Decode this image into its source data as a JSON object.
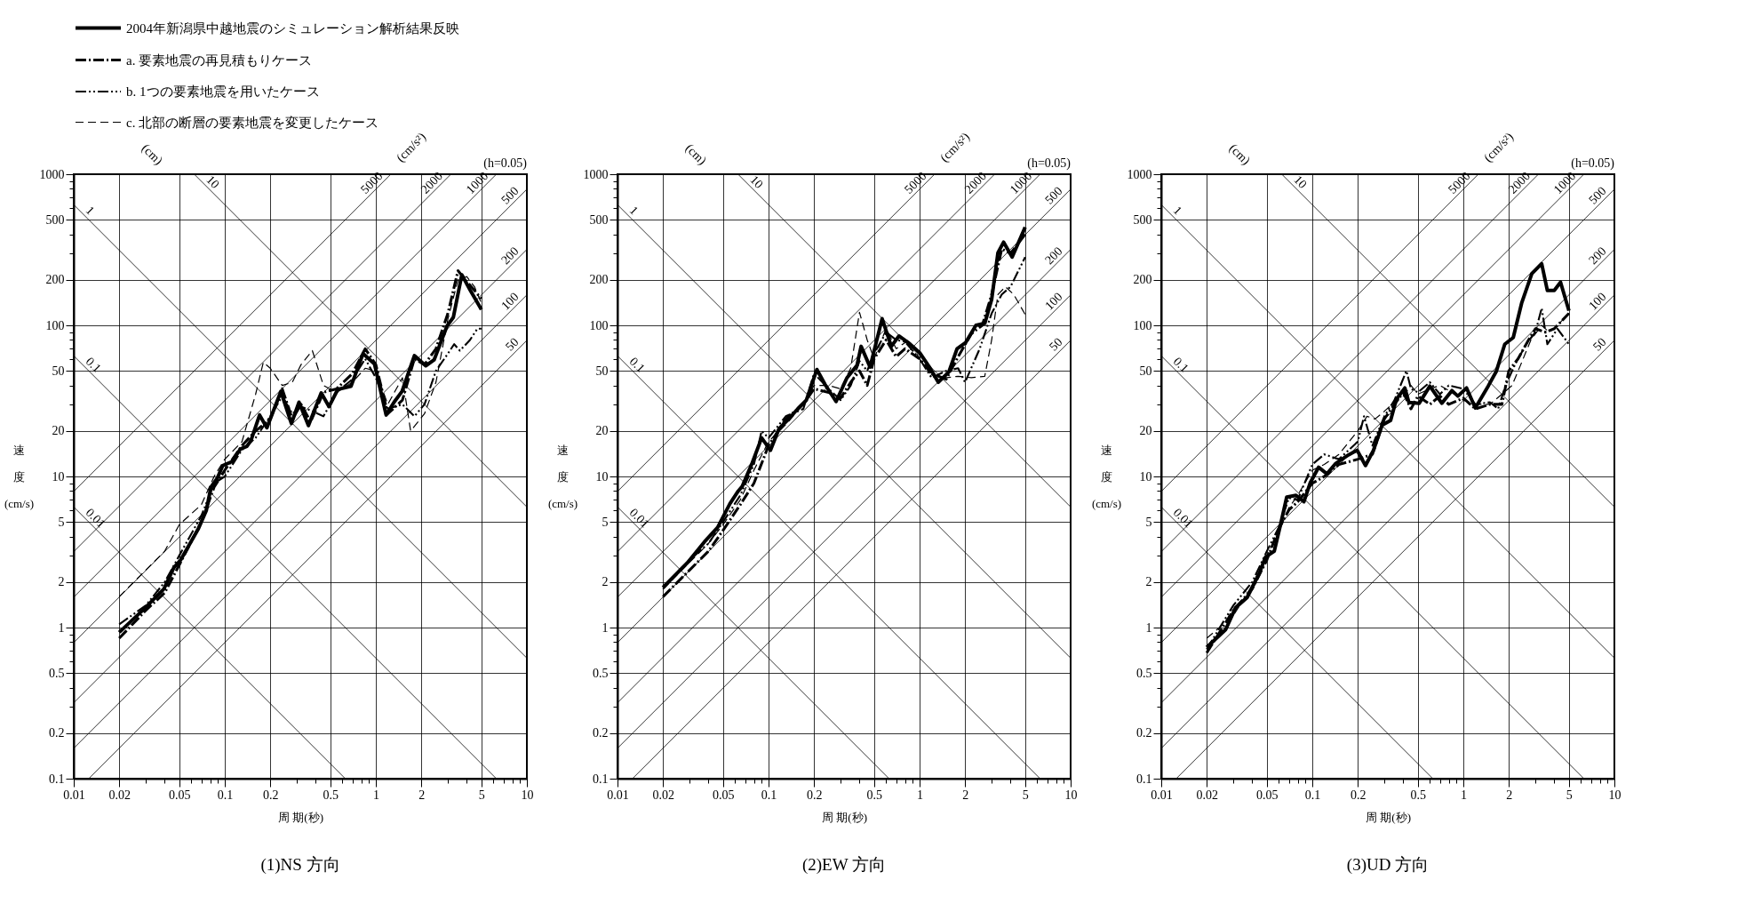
{
  "chart_data": [
    {
      "type": "line",
      "title": "(1)NS 方向",
      "xlabel": "周 期(秒)",
      "ylabel": "速度(cm/s)",
      "log": "xy",
      "grid": true,
      "legend": "top left",
      "xlim": [
        0.01,
        10
      ],
      "ylim": [
        0.1,
        1000
      ],
      "xticks": [
        0.01,
        0.02,
        {
          "value": 0.03,
          "label": null
        },
        {
          "value": 0.04,
          "label": null
        },
        0.05,
        {
          "value": 0.06,
          "label": null
        },
        {
          "value": 0.07,
          "label": null
        },
        {
          "value": 0.08,
          "label": null
        },
        {
          "value": 0.09,
          "label": null
        },
        0.1,
        0.2,
        {
          "value": 0.3,
          "label": null
        },
        {
          "value": 0.4,
          "label": null
        },
        0.5,
        {
          "value": 0.6,
          "label": null
        },
        {
          "value": 0.7,
          "label": null
        },
        {
          "value": 0.8,
          "label": null
        },
        {
          "value": 0.9,
          "label": null
        },
        1,
        2,
        {
          "value": 3,
          "label": null
        },
        {
          "value": 4,
          "label": null
        },
        5,
        {
          "value": 6,
          "label": null
        },
        {
          "value": 7,
          "label": null
        },
        {
          "value": 8,
          "label": null
        },
        {
          "value": 9,
          "label": null
        },
        10
      ],
      "yticks": [
        0.1,
        0.2,
        {
          "value": 0.3,
          "label": null
        },
        {
          "value": 0.4,
          "label": null
        },
        0.5,
        {
          "value": 0.6,
          "label": null
        },
        {
          "value": 0.7,
          "label": null
        },
        {
          "value": 0.8,
          "label": null
        },
        {
          "value": 0.9,
          "label": null
        },
        1,
        2,
        {
          "value": 3,
          "label": null
        },
        {
          "value": 4,
          "label": null
        },
        5,
        {
          "value": 6,
          "label": null
        },
        {
          "value": 7,
          "label": null
        },
        {
          "value": 8,
          "label": null
        },
        {
          "value": 9,
          "label": null
        },
        10,
        20,
        {
          "value": 30,
          "label": null
        },
        {
          "value": 40,
          "label": null
        },
        50,
        {
          "value": 60,
          "label": null
        },
        {
          "value": 70,
          "label": null
        },
        {
          "value": 80,
          "label": null
        },
        {
          "value": 90,
          "label": null
        },
        100,
        200,
        {
          "value": 300,
          "label": null
        },
        {
          "value": 400,
          "label": null
        },
        500,
        {
          "value": 600,
          "label": null
        },
        {
          "value": 700,
          "label": null
        },
        {
          "value": 800,
          "label": null
        },
        {
          "value": 900,
          "label": null
        },
        1000
      ],
      "annotations": [
        "(cm)",
        "(cm/s²)",
        "(h=0.05)"
      ],
      "series": [
        {
          "name": "2004年新潟県中越地震のシミュレーション解析結果反映",
          "color": "#000000",
          "line_style": "solid",
          "x": [
            0.02,
            0.0286,
            0.0395,
            0.046,
            0.051,
            0.0665,
            0.0755,
            0.081,
            0.089,
            0.097,
            0.111,
            0.127,
            0.14,
            0.149,
            0.17,
            0.19,
            0.235,
            0.276,
            0.31,
            0.358,
            0.435,
            0.49,
            0.56,
            0.685,
            0.823,
            0.98,
            1.17,
            1.32,
            1.49,
            1.8,
            2.14,
            2.43,
            2.96,
            3.26,
            3.71,
            4.2,
            5.0
          ],
          "values": [
            0.93,
            1.3,
            1.8,
            2.49,
            2.8,
            4.46,
            5.96,
            8.5,
            9.7,
            11.8,
            12.5,
            15.2,
            15.8,
            17.3,
            25.5,
            21,
            36.5,
            22.4,
            31,
            21.7,
            35.7,
            29,
            37.7,
            39.5,
            65,
            55.5,
            25.5,
            31,
            36.5,
            63,
            54,
            59,
            99,
            113,
            216,
            172,
            127
          ]
        },
        {
          "name": "a. 要素地震の再見積もりケース",
          "color": "#000000",
          "line_style": "dashdot",
          "x": [
            0.02,
            0.03,
            0.04,
            0.05,
            0.07,
            0.085,
            0.1,
            0.13,
            0.16,
            0.18,
            0.2,
            0.24,
            0.28,
            0.32,
            0.37,
            0.45,
            0.55,
            0.7,
            0.85,
            1.0,
            1.2,
            1.5,
            1.8,
            2.1,
            2.5,
            3.0,
            3.5,
            4.0,
            4.5,
            5.0
          ],
          "values": [
            0.85,
            1.3,
            1.7,
            2.6,
            5.0,
            8.5,
            11,
            16,
            20,
            22,
            24,
            38,
            24,
            30,
            23,
            36,
            38,
            48,
            70,
            55,
            26,
            32,
            60,
            55,
            70,
            120,
            230,
            195,
            170,
            150
          ]
        },
        {
          "name": "b. 1つの要素地震を用いたケース",
          "color": "#000000",
          "line_style": "dashdotdot",
          "x": [
            0.02,
            0.03,
            0.04,
            0.05,
            0.07,
            0.085,
            0.1,
            0.13,
            0.16,
            0.2,
            0.24,
            0.28,
            0.32,
            0.38,
            0.45,
            0.55,
            0.7,
            0.85,
            1.0,
            1.2,
            1.5,
            1.8,
            2.1,
            2.5,
            3.0,
            3.3,
            3.6,
            4.2,
            4.7,
            5.0
          ],
          "values": [
            1.05,
            1.4,
            2.0,
            3.0,
            5.5,
            9,
            10,
            15,
            18,
            25,
            34,
            26,
            29,
            27,
            25,
            36,
            44,
            60,
            45,
            28,
            30,
            25,
            30,
            50,
            65,
            75,
            68,
            80,
            95,
            95
          ]
        },
        {
          "name": "c. 北部の断層の要素地震を変更したケース",
          "color": "#000000",
          "line_style": "dashed",
          "x": [
            0.02,
            0.03,
            0.04,
            0.05,
            0.07,
            0.085,
            0.1,
            0.13,
            0.16,
            0.18,
            0.2,
            0.24,
            0.28,
            0.32,
            0.38,
            0.45,
            0.55,
            0.7,
            0.85,
            1.0,
            1.2,
            1.5,
            1.7,
            2.1,
            2.5,
            3.0,
            3.5,
            4.0,
            4.5,
            5.0
          ],
          "values": [
            1.6,
            2.4,
            3.2,
            4.8,
            6.5,
            10,
            13,
            17,
            35,
            57,
            52,
            40,
            42,
            55,
            68,
            40,
            36,
            42,
            52,
            50,
            30,
            45,
            20,
            26,
            42,
            110,
            200,
            210,
            180,
            140
          ]
        },
        {
          "name": "1",
          "color": "#000000",
          "x": [
            0.01,
            10
          ],
          "values": [
            628,
            0.628
          ]
        },
        {
          "name": "10",
          "color": "#000000",
          "x": [
            0.0628,
            10
          ],
          "values": [
            1000,
            6.28
          ]
        },
        {
          "name": "0.1",
          "color": "#000000",
          "x": [
            0.01,
            6.28
          ],
          "values": [
            62.8,
            0.1
          ]
        },
        {
          "name": "0.01",
          "color": "#000000",
          "x": [
            0.01,
            0.628
          ],
          "values": [
            6.28,
            0.1
          ]
        },
        {
          "name": "5000",
          "color": "#000000",
          "x": [
            0.01,
            1.256
          ],
          "values": [
            7.96,
            1000
          ]
        },
        {
          "name": "2000",
          "color": "#000000",
          "x": [
            0.01,
            3.14
          ],
          "values": [
            3.18,
            1000
          ]
        },
        {
          "name": "1000",
          "color": "#000000",
          "x": [
            0.01,
            6.28
          ],
          "values": [
            1.59,
            1000
          ]
        },
        {
          "name": "500",
          "color": "#000000",
          "x": [
            0.01,
            10
          ],
          "values": [
            0.796,
            796
          ]
        },
        {
          "name": "200",
          "color": "#000000",
          "x": [
            0.01,
            10
          ],
          "values": [
            0.318,
            318
          ]
        },
        {
          "name": "100",
          "color": "#000000",
          "x": [
            0.01,
            10
          ],
          "values": [
            0.159,
            159
          ]
        },
        {
          "name": "50",
          "color": "#000000",
          "x": [
            0.01256,
            10
          ],
          "values": [
            0.1,
            79.6
          ]
        }
      ]
    },
    {
      "type": "line",
      "title": "(2)EW 方向",
      "xlabel": "周 期(秒)",
      "ylabel": "速度(cm/s)",
      "log": "xy",
      "grid": true,
      "xlim": [
        0.01,
        10
      ],
      "ylim": [
        0.1,
        1000
      ],
      "xticks": [
        0.01,
        0.02,
        {
          "value": 0.03,
          "label": null
        },
        {
          "value": 0.04,
          "label": null
        },
        0.05,
        {
          "value": 0.06,
          "label": null
        },
        {
          "value": 0.07,
          "label": null
        },
        {
          "value": 0.08,
          "label": null
        },
        {
          "value": 0.09,
          "label": null
        },
        0.1,
        0.2,
        {
          "value": 0.3,
          "label": null
        },
        {
          "value": 0.4,
          "label": null
        },
        0.5,
        {
          "value": 0.6,
          "label": null
        },
        {
          "value": 0.7,
          "label": null
        },
        {
          "value": 0.8,
          "label": null
        },
        {
          "value": 0.9,
          "label": null
        },
        1,
        2,
        {
          "value": 3,
          "label": null
        },
        {
          "value": 4,
          "label": null
        },
        5,
        {
          "value": 6,
          "label": null
        },
        {
          "value": 7,
          "label": null
        },
        {
          "value": 8,
          "label": null
        },
        {
          "value": 9,
          "label": null
        },
        10
      ],
      "yticks": [
        0.1,
        0.2,
        {
          "value": 0.3,
          "label": null
        },
        {
          "value": 0.4,
          "label": null
        },
        0.5,
        {
          "value": 0.6,
          "label": null
        },
        {
          "value": 0.7,
          "label": null
        },
        {
          "value": 0.8,
          "label": null
        },
        {
          "value": 0.9,
          "label": null
        },
        1,
        2,
        {
          "value": 3,
          "label": null
        },
        {
          "value": 4,
          "label": null
        },
        5,
        {
          "value": 6,
          "label": null
        },
        {
          "value": 7,
          "label": null
        },
        {
          "value": 8,
          "label": null
        },
        {
          "value": 9,
          "label": null
        },
        10,
        20,
        {
          "value": 30,
          "label": null
        },
        {
          "value": 40,
          "label": null
        },
        50,
        {
          "value": 60,
          "label": null
        },
        {
          "value": 70,
          "label": null
        },
        {
          "value": 80,
          "label": null
        },
        {
          "value": 90,
          "label": null
        },
        100,
        200,
        {
          "value": 300,
          "label": null
        },
        {
          "value": 400,
          "label": null
        },
        500,
        {
          "value": 600,
          "label": null
        },
        {
          "value": 700,
          "label": null
        },
        {
          "value": 800,
          "label": null
        },
        {
          "value": 900,
          "label": null
        },
        1000
      ],
      "annotations": [
        "(cm)",
        "(cm/s²)",
        "(h=0.05)"
      ],
      "series": [
        {
          "color": "#000000",
          "line_style": "solid",
          "x": [
            0.02,
            0.029,
            0.0377,
            0.046,
            0.0555,
            0.063,
            0.067,
            0.077,
            0.09,
            0.103,
            0.117,
            0.137,
            0.156,
            0.178,
            0.209,
            0.237,
            0.28,
            0.33,
            0.385,
            0.41,
            0.47,
            0.565,
            0.65,
            0.73,
            0.84,
            1.0,
            1.16,
            1.33,
            1.56,
            1.77,
            2.02,
            2.36,
            2.7,
            3.0,
            3.3,
            3.6,
            4.1,
            5.0
          ],
          "values": [
            1.84,
            2.68,
            3.7,
            4.6,
            6.6,
            8.0,
            8.6,
            11.9,
            18,
            14.9,
            20.6,
            24.2,
            28,
            32,
            51,
            40.5,
            31.3,
            44.8,
            54.3,
            72.6,
            53,
            110.6,
            72.6,
            85,
            77,
            66,
            53,
            42,
            49,
            70,
            77,
            100,
            103,
            148,
            302,
            355,
            283,
            446
          ]
        },
        {
          "color": "#000000",
          "line_style": "dashdot",
          "x": [
            0.02,
            0.03,
            0.04,
            0.05,
            0.065,
            0.08,
            0.1,
            0.13,
            0.17,
            0.2,
            0.25,
            0.3,
            0.35,
            0.4,
            0.45,
            0.5,
            0.6,
            0.7,
            0.8,
            1.0,
            1.2,
            1.5,
            1.8,
            2.2,
            2.6,
            3.0,
            3.5,
            4.0,
            5.0
          ],
          "values": [
            1.6,
            2.4,
            3.2,
            4.4,
            6.5,
            9.0,
            16,
            24,
            30,
            38,
            36,
            33,
            42,
            50,
            40,
            60,
            80,
            62,
            70,
            60,
            48,
            44,
            62,
            88,
            100,
            160,
            320,
            300,
            400
          ]
        },
        {
          "color": "#000000",
          "line_style": "dashdotdot",
          "x": [
            0.02,
            0.03,
            0.04,
            0.05,
            0.065,
            0.08,
            0.09,
            0.1,
            0.13,
            0.17,
            0.2,
            0.25,
            0.3,
            0.35,
            0.4,
            0.45,
            0.5,
            0.6,
            0.7,
            0.8,
            1.0,
            1.2,
            1.5,
            1.8,
            2.0,
            2.5,
            3.0,
            3.5,
            4.0,
            5.0
          ],
          "values": [
            1.8,
            2.8,
            3.6,
            5.0,
            7.5,
            12,
            20,
            18,
            25,
            28,
            48,
            38,
            32,
            40,
            58,
            50,
            65,
            90,
            80,
            78,
            60,
            45,
            50,
            52,
            42,
            70,
            120,
            160,
            180,
            283
          ]
        },
        {
          "color": "#000000",
          "line_style": "dashed",
          "x": [
            0.02,
            0.03,
            0.04,
            0.05,
            0.065,
            0.08,
            0.1,
            0.13,
            0.17,
            0.2,
            0.25,
            0.3,
            0.35,
            0.4,
            0.45,
            0.5,
            0.6,
            0.7,
            0.85,
            1.0,
            1.2,
            1.5,
            1.8,
            2.2,
            2.7,
            3.0,
            3.3,
            3.7,
            4.2,
            5.0
          ],
          "values": [
            1.8,
            2.7,
            3.6,
            4.8,
            7.0,
            11,
            17,
            22,
            30,
            40,
            40,
            38,
            52,
            122,
            80,
            60,
            95,
            70,
            80,
            60,
            47,
            45,
            46,
            45,
            46,
            80,
            160,
            180,
            160,
            118
          ]
        },
        {
          "name": "1",
          "color": "#000000",
          "x": [
            0.01,
            10
          ],
          "values": [
            628,
            0.628
          ]
        },
        {
          "name": "10",
          "color": "#000000",
          "x": [
            0.0628,
            10
          ],
          "values": [
            1000,
            6.28
          ]
        },
        {
          "name": "0.1",
          "color": "#000000",
          "x": [
            0.01,
            6.28
          ],
          "values": [
            62.8,
            0.1
          ]
        },
        {
          "name": "0.01",
          "color": "#000000",
          "x": [
            0.01,
            0.628
          ],
          "values": [
            6.28,
            0.1
          ]
        },
        {
          "name": "5000",
          "color": "#000000",
          "x": [
            0.01,
            1.256
          ],
          "values": [
            7.96,
            1000
          ]
        },
        {
          "name": "2000",
          "color": "#000000",
          "x": [
            0.01,
            3.14
          ],
          "values": [
            3.18,
            1000
          ]
        },
        {
          "name": "1000",
          "color": "#000000",
          "x": [
            0.01,
            6.28
          ],
          "values": [
            1.59,
            1000
          ]
        },
        {
          "name": "500",
          "color": "#000000",
          "x": [
            0.01,
            10
          ],
          "values": [
            0.796,
            796
          ]
        },
        {
          "name": "200",
          "color": "#000000",
          "x": [
            0.01,
            10
          ],
          "values": [
            0.318,
            318
          ]
        },
        {
          "name": "100",
          "color": "#000000",
          "x": [
            0.01,
            10
          ],
          "values": [
            0.159,
            159
          ]
        },
        {
          "name": "50",
          "color": "#000000",
          "x": [
            0.01256,
            10
          ],
          "values": [
            0.1,
            79.6
          ]
        }
      ]
    },
    {
      "type": "line",
      "title": "(3)UD 方向",
      "xlabel": "周 期(秒)",
      "ylabel": "速度(cm/s)",
      "log": "xy",
      "grid": true,
      "xlim": [
        0.01,
        10
      ],
      "ylim": [
        0.1,
        1000
      ],
      "xticks": [
        0.01,
        0.02,
        {
          "value": 0.03,
          "label": null
        },
        {
          "value": 0.04,
          "label": null
        },
        0.05,
        {
          "value": 0.06,
          "label": null
        },
        {
          "value": 0.07,
          "label": null
        },
        {
          "value": 0.08,
          "label": null
        },
        {
          "value": 0.09,
          "label": null
        },
        0.1,
        0.2,
        {
          "value": 0.3,
          "label": null
        },
        {
          "value": 0.4,
          "label": null
        },
        0.5,
        {
          "value": 0.6,
          "label": null
        },
        {
          "value": 0.7,
          "label": null
        },
        {
          "value": 0.8,
          "label": null
        },
        {
          "value": 0.9,
          "label": null
        },
        1,
        2,
        {
          "value": 3,
          "label": null
        },
        {
          "value": 4,
          "label": null
        },
        5,
        {
          "value": 6,
          "label": null
        },
        {
          "value": 7,
          "label": null
        },
        {
          "value": 8,
          "label": null
        },
        {
          "value": 9,
          "label": null
        },
        10
      ],
      "yticks": [
        0.1,
        0.2,
        {
          "value": 0.3,
          "label": null
        },
        {
          "value": 0.4,
          "label": null
        },
        0.5,
        {
          "value": 0.6,
          "label": null
        },
        {
          "value": 0.7,
          "label": null
        },
        {
          "value": 0.8,
          "label": null
        },
        {
          "value": 0.9,
          "label": null
        },
        1,
        2,
        {
          "value": 3,
          "label": null
        },
        {
          "value": 4,
          "label": null
        },
        5,
        {
          "value": 6,
          "label": null
        },
        {
          "value": 7,
          "label": null
        },
        {
          "value": 8,
          "label": null
        },
        {
          "value": 9,
          "label": null
        },
        10,
        20,
        {
          "value": 30,
          "label": null
        },
        {
          "value": 40,
          "label": null
        },
        50,
        {
          "value": 60,
          "label": null
        },
        {
          "value": 70,
          "label": null
        },
        {
          "value": 80,
          "label": null
        },
        {
          "value": 90,
          "label": null
        },
        100,
        200,
        {
          "value": 300,
          "label": null
        },
        {
          "value": 400,
          "label": null
        },
        500,
        {
          "value": 600,
          "label": null
        },
        {
          "value": 700,
          "label": null
        },
        {
          "value": 800,
          "label": null
        },
        {
          "value": 900,
          "label": null
        },
        1000
      ],
      "annotations": [
        "(cm)",
        "(cm/s²)",
        "(h=0.05)"
      ],
      "series": [
        {
          "color": "#000000",
          "line_style": "solid",
          "x": [
            0.02,
            0.0267,
            0.031,
            0.037,
            0.0447,
            0.049,
            0.056,
            0.0616,
            0.0677,
            0.078,
            0.088,
            0.097,
            0.11,
            0.125,
            0.143,
            0.174,
            0.198,
            0.225,
            0.254,
            0.29,
            0.33,
            0.36,
            0.41,
            0.436,
            0.51,
            0.6,
            0.72,
            0.84,
            0.92,
            1.05,
            1.2,
            1.46,
            1.65,
            1.88,
            2.14,
            2.43,
            2.84,
            3.3,
            3.6,
            4.0,
            4.4,
            5.0
          ],
          "values": [
            0.74,
            0.97,
            1.35,
            1.58,
            2.3,
            2.93,
            3.2,
            4.8,
            7.3,
            7.5,
            6.8,
            9.1,
            11.5,
            10.4,
            12.2,
            13.9,
            14.9,
            11.8,
            14.9,
            21.9,
            23.5,
            32.4,
            38.5,
            30.9,
            30.5,
            39.6,
            30.5,
            37,
            34,
            38.5,
            28.4,
            39.6,
            49.4,
            75,
            83,
            140,
            220,
            256,
            170,
            170,
            193,
            125
          ]
        },
        {
          "color": "#000000",
          "line_style": "dashdot",
          "x": [
            0.02,
            0.03,
            0.04,
            0.05,
            0.06,
            0.07,
            0.08,
            0.1,
            0.12,
            0.15,
            0.2,
            0.25,
            0.3,
            0.35,
            0.4,
            0.45,
            0.5,
            0.6,
            0.7,
            0.8,
            1.0,
            1.2,
            1.5,
            1.8,
            2.0,
            2.3,
            2.7,
            3.0,
            3.5,
            4.0,
            5.0
          ],
          "values": [
            0.68,
            1.3,
            1.8,
            2.8,
            4.5,
            6.0,
            6.8,
            9.0,
            10,
            12,
            13,
            14,
            24,
            30,
            36,
            28,
            34,
            30,
            34,
            30,
            33,
            28,
            30,
            30,
            50,
            60,
            80,
            95,
            90,
            95,
            120
          ]
        },
        {
          "color": "#000000",
          "line_style": "dashdotdot",
          "x": [
            0.02,
            0.03,
            0.04,
            0.05,
            0.06,
            0.07,
            0.08,
            0.1,
            0.12,
            0.15,
            0.2,
            0.22,
            0.25,
            0.3,
            0.35,
            0.42,
            0.45,
            0.5,
            0.6,
            0.7,
            0.8,
            1.0,
            1.2,
            1.5,
            1.7,
            1.9,
            2.2,
            2.6,
            3.0,
            3.3,
            3.6,
            4.2,
            5.0
          ],
          "values": [
            0.72,
            1.4,
            2.0,
            3.2,
            4.6,
            7.2,
            7.0,
            12,
            14,
            13,
            17,
            25,
            16,
            25,
            32,
            50,
            38,
            36,
            42,
            35,
            40,
            38,
            30,
            31,
            28,
            40,
            55,
            75,
            90,
            130,
            75,
            95,
            75
          ]
        },
        {
          "color": "#000000",
          "line_style": "dashed",
          "x": [
            0.02,
            0.03,
            0.04,
            0.05,
            0.06,
            0.07,
            0.08,
            0.1,
            0.12,
            0.15,
            0.2,
            0.23,
            0.26,
            0.3,
            0.35,
            0.4,
            0.45,
            0.5,
            0.6,
            0.7,
            0.8,
            1.0,
            1.2,
            1.5,
            1.8,
            2.1,
            2.4,
            2.8,
            3.3,
            3.7,
            4.2,
            5.0
          ],
          "values": [
            0.85,
            1.2,
            1.9,
            3.0,
            4.3,
            6.2,
            7.5,
            11,
            12,
            14,
            20,
            25,
            24,
            27,
            31,
            34,
            40,
            35,
            38,
            40,
            37,
            32,
            30,
            30,
            35,
            40,
            55,
            80,
            100,
            90,
            100,
            120
          ]
        },
        {
          "name": "1",
          "color": "#000000",
          "x": [
            0.01,
            10
          ],
          "values": [
            628,
            0.628
          ]
        },
        {
          "name": "10",
          "color": "#000000",
          "x": [
            0.0628,
            10
          ],
          "values": [
            1000,
            6.28
          ]
        },
        {
          "name": "0.1",
          "color": "#000000",
          "x": [
            0.01,
            6.28
          ],
          "values": [
            62.8,
            0.1
          ]
        },
        {
          "name": "0.01",
          "color": "#000000",
          "x": [
            0.01,
            0.628
          ],
          "values": [
            6.28,
            0.1
          ]
        },
        {
          "name": "5000",
          "color": "#000000",
          "x": [
            0.01,
            1.256
          ],
          "values": [
            7.96,
            1000
          ]
        },
        {
          "name": "2000",
          "color": "#000000",
          "x": [
            0.01,
            3.14
          ],
          "values": [
            3.18,
            1000
          ]
        },
        {
          "name": "1000",
          "color": "#000000",
          "x": [
            0.01,
            6.28
          ],
          "values": [
            1.59,
            1000
          ]
        },
        {
          "name": "500",
          "color": "#000000",
          "x": [
            0.01,
            10
          ],
          "values": [
            0.796,
            796
          ]
        },
        {
          "name": "200",
          "color": "#000000",
          "x": [
            0.01,
            10
          ],
          "values": [
            0.318,
            318
          ]
        },
        {
          "name": "100",
          "color": "#000000",
          "x": [
            0.01,
            10
          ],
          "values": [
            0.159,
            159
          ]
        },
        {
          "name": "50",
          "color": "#000000",
          "x": [
            0.01256,
            10
          ],
          "values": [
            0.1,
            79.6
          ]
        }
      ]
    }
  ]
}
